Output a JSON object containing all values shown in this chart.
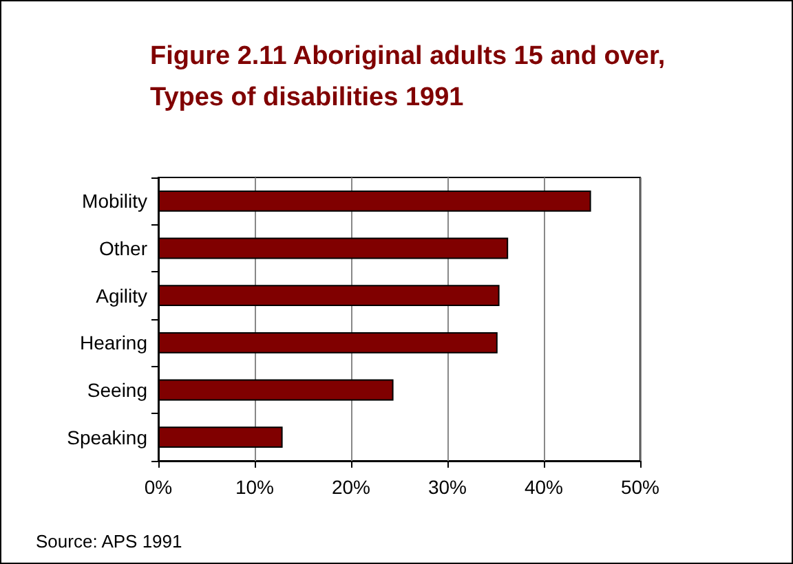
{
  "chart_data": {
    "type": "bar",
    "orientation": "horizontal",
    "title": "Figure 2.11 Aboriginal adults 15 and over, Types of disabilities 1991",
    "categories": [
      "Mobility",
      "Other",
      "Agility",
      "Hearing",
      "Seeing",
      "Speaking"
    ],
    "values": [
      44.9,
      36.3,
      35.4,
      35.2,
      24.4,
      12.9
    ],
    "color": "#800000",
    "xlim": [
      0,
      50
    ],
    "xticks": [
      {
        "value": 0,
        "label": "0%"
      },
      {
        "value": 10,
        "label": "10%"
      },
      {
        "value": 20,
        "label": "20%"
      },
      {
        "value": 30,
        "label": "30%"
      },
      {
        "value": 40,
        "label": "40%"
      },
      {
        "value": 50,
        "label": "50%"
      }
    ],
    "grid": "x",
    "annotations": [
      "Source: APS 1991"
    ]
  }
}
